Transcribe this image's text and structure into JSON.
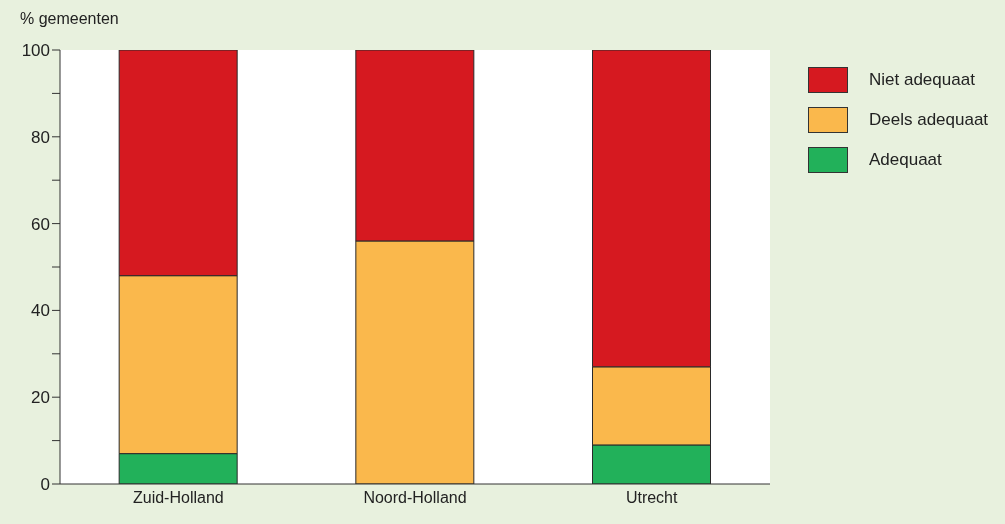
{
  "chart_data": {
    "type": "bar",
    "ylabel": "% gemeenten",
    "categories": [
      "Zuid-Holland",
      "Noord-Holland",
      "Utrecht"
    ],
    "stacked": true,
    "series": [
      {
        "name": "Adequaat",
        "color": "#22b15a",
        "values": [
          7,
          0,
          9
        ]
      },
      {
        "name": "Deels adequaat",
        "color": "#fab84c",
        "values": [
          41,
          56,
          18
        ]
      },
      {
        "name": "Niet adequaat",
        "color": "#d61920",
        "values": [
          52,
          44,
          73
        ]
      }
    ],
    "ylim": [
      0,
      100
    ],
    "yticks": [
      0,
      {
        "value": 10,
        "label": null
      },
      20,
      {
        "value": 30,
        "label": null
      },
      40,
      {
        "value": 50,
        "label": null
      },
      60,
      {
        "value": 70,
        "label": null
      },
      80,
      {
        "value": 90,
        "label": null
      },
      100
    ],
    "grid": false,
    "legend": "top right"
  }
}
